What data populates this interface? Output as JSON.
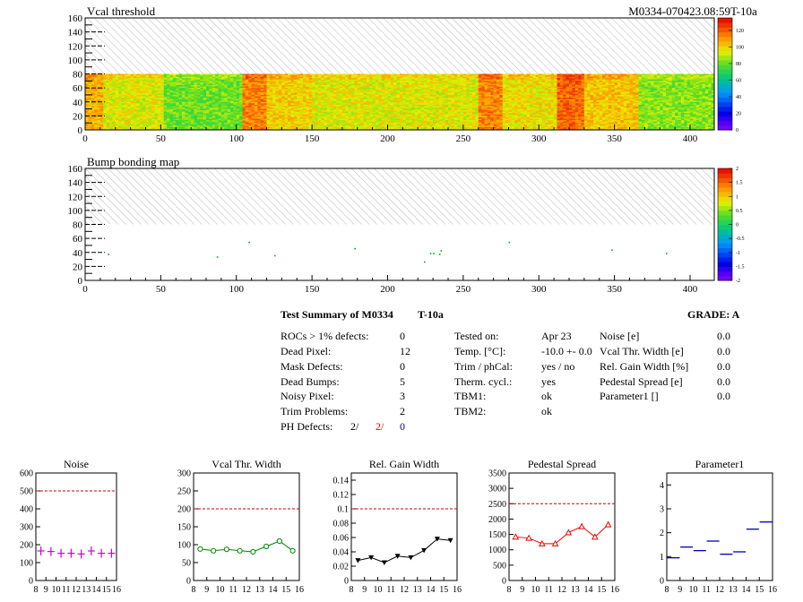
{
  "chart_data": [
    {
      "type": "heatmap",
      "title": "Vcal threshold",
      "right_title": "M0334-070423.08:59T-10a",
      "x_ticks": [
        0,
        50,
        100,
        150,
        200,
        250,
        300,
        350,
        400
      ],
      "y_ticks": [
        0,
        20,
        40,
        60,
        80,
        100,
        120,
        140,
        160
      ],
      "xlim": [
        0,
        416
      ],
      "ylim": [
        0,
        160
      ],
      "filled_rows": [
        0,
        80
      ],
      "hatched_rows": [
        80,
        160
      ],
      "z_ticks": [
        0,
        20,
        40,
        60,
        80,
        100,
        120
      ],
      "zlim": [
        0,
        135
      ],
      "palette": "rainbow",
      "grid": false
    },
    {
      "type": "heatmap",
      "title": "Bump bonding map",
      "x_ticks": [
        0,
        50,
        100,
        150,
        200,
        250,
        300,
        350,
        400
      ],
      "y_ticks": [
        0,
        20,
        40,
        60,
        80,
        100,
        120,
        140,
        160
      ],
      "xlim": [
        0,
        416
      ],
      "ylim": [
        0,
        160
      ],
      "hatched_rows": [
        80,
        160
      ],
      "z_ticks": [
        "-2",
        "-1.5",
        "-1",
        "-0.5",
        "0",
        "0.5",
        "1",
        "1.5",
        "2"
      ],
      "zlim": [
        -2,
        2
      ],
      "defects": [
        [
          15,
          37
        ],
        [
          87,
          33
        ],
        [
          108,
          54
        ],
        [
          125,
          35
        ],
        [
          178,
          45
        ],
        [
          224,
          26
        ],
        [
          228,
          38
        ],
        [
          230,
          38
        ],
        [
          234,
          37
        ],
        [
          235,
          42
        ],
        [
          280,
          54
        ],
        [
          348,
          43
        ],
        [
          384,
          38
        ]
      ]
    },
    {
      "type": "scatter",
      "title": "Noise",
      "color": "#d000d0",
      "marker": "plus",
      "xlim": [
        8,
        16
      ],
      "ylim": [
        0,
        600
      ],
      "x_ticks": [
        8,
        9,
        10,
        11,
        12,
        13,
        14,
        15,
        16
      ],
      "y_ticks": [
        "0",
        "100",
        "200",
        "300",
        "400",
        "500",
        "600"
      ],
      "threshold": 500,
      "x": [
        8.5,
        9.5,
        10.5,
        11.5,
        12.5,
        13.5,
        14.5,
        15.5
      ],
      "values": [
        165,
        162,
        152,
        152,
        148,
        165,
        152,
        152
      ]
    },
    {
      "type": "line",
      "title": "Vcal Thr. Width",
      "color": "#008800",
      "marker": "circle",
      "xlim": [
        8,
        16
      ],
      "ylim": [
        0,
        300
      ],
      "x_ticks": [
        8,
        9,
        10,
        11,
        12,
        13,
        14,
        15,
        16
      ],
      "y_ticks": [
        "0",
        "50",
        "100",
        "150",
        "200",
        "250",
        "300"
      ],
      "threshold": 200,
      "x": [
        8.5,
        9.5,
        10.5,
        11.5,
        12.5,
        13.5,
        14.5,
        15.5
      ],
      "values": [
        88,
        83,
        87,
        83,
        80,
        95,
        110,
        83
      ]
    },
    {
      "type": "line",
      "title": "Rel. Gain Width",
      "color": "#000000",
      "marker": "triangle-down",
      "xlim": [
        8,
        16
      ],
      "ylim": [
        0,
        0.15
      ],
      "x_ticks": [
        8,
        9,
        10,
        11,
        12,
        13,
        14,
        15,
        16
      ],
      "y_ticks": [
        "0",
        "0.02",
        "0.04",
        "0.06",
        "0.08",
        "0.1",
        "0.12",
        "0.14"
      ],
      "threshold": 0.1,
      "x": [
        8.5,
        9.5,
        10.5,
        11.5,
        12.5,
        13.5,
        14.5,
        15.5
      ],
      "values": [
        0.028,
        0.032,
        0.025,
        0.034,
        0.032,
        0.042,
        0.058,
        0.056
      ]
    },
    {
      "type": "line",
      "title": "Pedestal Spread",
      "color": "#ee0000",
      "marker": "triangle-up",
      "xlim": [
        8,
        16
      ],
      "ylim": [
        0,
        3500
      ],
      "x_ticks": [
        8,
        9,
        10,
        11,
        12,
        13,
        14,
        15,
        16
      ],
      "y_ticks": [
        "0",
        "500",
        "1000",
        "1500",
        "2000",
        "2500",
        "3000",
        "3500"
      ],
      "threshold": 2500,
      "x": [
        8.5,
        9.5,
        10.5,
        11.5,
        12.5,
        13.5,
        14.5,
        15.5
      ],
      "values": [
        1420,
        1380,
        1200,
        1200,
        1560,
        1760,
        1420,
        1820
      ]
    },
    {
      "type": "scatter",
      "title": "Parameter1",
      "color": "#0000bb",
      "marker": "hbar",
      "xlim": [
        8,
        16
      ],
      "ylim": [
        0,
        4.5
      ],
      "x_ticks": [
        8,
        9,
        10,
        11,
        12,
        13,
        14,
        15,
        16
      ],
      "y_ticks": [
        "0",
        "1",
        "2",
        "3",
        "4"
      ],
      "x": [
        8.5,
        9.5,
        10.5,
        11.5,
        12.5,
        13.5,
        14.5,
        15.5
      ],
      "values": [
        0.95,
        1.4,
        1.25,
        1.65,
        1.1,
        1.2,
        2.15,
        2.45
      ]
    }
  ],
  "summary": {
    "heading": "Test Summary of M0334",
    "temp_label": "T-10a",
    "grade": "GRADE:  A",
    "left": [
      {
        "label": "ROCs > 1% defects:",
        "value": "0"
      },
      {
        "label": "Dead Pixel:",
        "value": "12"
      },
      {
        "label": "Mask Defects:",
        "value": "0"
      },
      {
        "label": "Dead Bumps:",
        "value": "5"
      },
      {
        "label": "Noisy Pixel:",
        "value": "3"
      },
      {
        "label": "Trim Problems:",
        "value": "2"
      }
    ],
    "ph_label": "PH Defects:",
    "ph_a": "2/",
    "ph_b": "2/",
    "ph_c": "0",
    "mid": [
      {
        "label": "Tested on:",
        "value": "Apr 23"
      },
      {
        "label": "Temp. [°C]:",
        "value": "-10.0 +- 0.0"
      },
      {
        "label": "Trim / phCal:",
        "value": "yes / no"
      },
      {
        "label": "Therm. cycl.:",
        "value": "yes"
      },
      {
        "label": "TBM1:",
        "value": "ok"
      },
      {
        "label": "TBM2:",
        "value": "ok"
      }
    ],
    "right": [
      {
        "label": "Noise [e]",
        "value": "0.0"
      },
      {
        "label": "Vcal Thr. Width [e]",
        "value": "0.0"
      },
      {
        "label": "Rel. Gain Width [%]",
        "value": "0.0"
      },
      {
        "label": "Pedestal Spread [e]",
        "value": "0.0"
      },
      {
        "label": "Parameter1 []",
        "value": "0.0"
      }
    ],
    "colors": {
      "ph_b": "#ee0000",
      "ph_c": "#0000cc"
    }
  }
}
